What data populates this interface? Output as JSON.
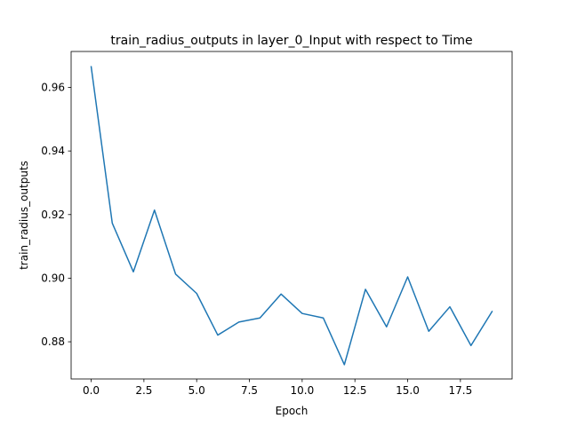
{
  "chart_data": {
    "type": "line",
    "title": "train_radius_outputs in layer_0_Input with respect to Time",
    "xlabel": "Epoch",
    "ylabel": "train_radius_outputs",
    "xlim": [
      -0.95,
      19.95
    ],
    "ylim": [
      0.8683,
      0.9713
    ],
    "x_ticks": [
      {
        "value": 0.0,
        "label": "0.0"
      },
      {
        "value": 2.5,
        "label": "2.5"
      },
      {
        "value": 5.0,
        "label": "5.0"
      },
      {
        "value": 7.5,
        "label": "7.5"
      },
      {
        "value": 10.0,
        "label": "10.0"
      },
      {
        "value": 12.5,
        "label": "12.5"
      },
      {
        "value": 15.0,
        "label": "15.0"
      },
      {
        "value": 17.5,
        "label": "17.5"
      }
    ],
    "y_ticks": [
      {
        "value": 0.88,
        "label": "0.88"
      },
      {
        "value": 0.9,
        "label": "0.90"
      },
      {
        "value": 0.92,
        "label": "0.92"
      },
      {
        "value": 0.94,
        "label": "0.94"
      },
      {
        "value": 0.96,
        "label": "0.96"
      }
    ],
    "grid": false,
    "series": [
      {
        "color": "#1f77b4",
        "x": [
          0,
          1,
          2,
          3,
          4,
          5,
          6,
          7,
          8,
          9,
          10,
          11,
          12,
          13,
          14,
          15,
          16,
          17,
          18,
          19
        ],
        "y": [
          0.9665,
          0.9173,
          0.902,
          0.9214,
          0.9013,
          0.8952,
          0.8821,
          0.8862,
          0.8875,
          0.895,
          0.8889,
          0.8875,
          0.8728,
          0.8965,
          0.8847,
          0.9004,
          0.8833,
          0.891,
          0.8788,
          0.8895
        ]
      }
    ]
  }
}
